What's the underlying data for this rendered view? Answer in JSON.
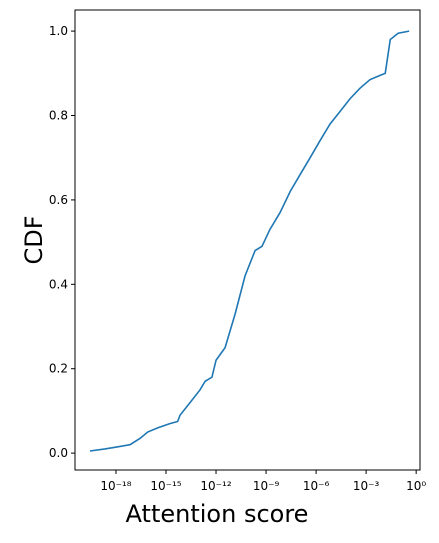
{
  "chart_data": {
    "type": "line",
    "xscale": "log",
    "xlabel": "Attention score",
    "ylabel": "CDF",
    "x": [
      2.75e-20,
      2.2e-19,
      1.3e-18,
      7e-18,
      2.8e-17,
      8e-17,
      3.3e-16,
      1.7e-15,
      5e-15,
      7e-15,
      2.8e-14,
      1.1e-13,
      2.2e-13,
      5.7e-13,
      1e-12,
      3.5e-12,
      1.4e-11,
      5.5e-11,
      2.2e-10,
      5.7e-10,
      1.7e-09,
      6.9e-09,
      2.8e-08,
      1.1e-07,
      4.4e-07,
      1.7e-06,
      6.9e-06,
      2.8e-05,
      0.00011,
      0.00044,
      0.0017,
      0.0069,
      0.014,
      0.028,
      0.083,
      0.38
    ],
    "series": [
      {
        "color": "#1f77b4",
        "values": [
          0.005,
          0.01,
          0.015,
          0.02,
          0.035,
          0.05,
          0.06,
          0.07,
          0.075,
          0.09,
          0.12,
          0.15,
          0.17,
          0.18,
          0.22,
          0.25,
          0.33,
          0.42,
          0.48,
          0.49,
          0.53,
          0.57,
          0.62,
          0.66,
          0.7,
          0.74,
          0.78,
          0.81,
          0.84,
          0.865,
          0.885,
          0.895,
          0.9,
          0.98,
          0.995,
          1.0
        ]
      }
    ],
    "xlim": [
      3.5e-21,
      1.7
    ],
    "xticks": [
      {
        "value": 1e-18,
        "label": "10⁻¹⁸"
      },
      {
        "value": 1e-15,
        "label": "10⁻¹⁵"
      },
      {
        "value": 1e-12,
        "label": "10⁻¹²"
      },
      {
        "value": 1e-09,
        "label": "10⁻⁹"
      },
      {
        "value": 1e-06,
        "label": "10⁻⁶"
      },
      {
        "value": 0.001,
        "label": "10⁻³"
      },
      {
        "value": 1,
        "label": "10⁰"
      }
    ],
    "ylim": [
      -0.04,
      1.05
    ],
    "yticks": [
      {
        "value": 0,
        "label": "0.0"
      },
      0.2,
      0.4,
      0.6,
      0.8,
      {
        "value": 1,
        "label": "1.0"
      }
    ]
  }
}
